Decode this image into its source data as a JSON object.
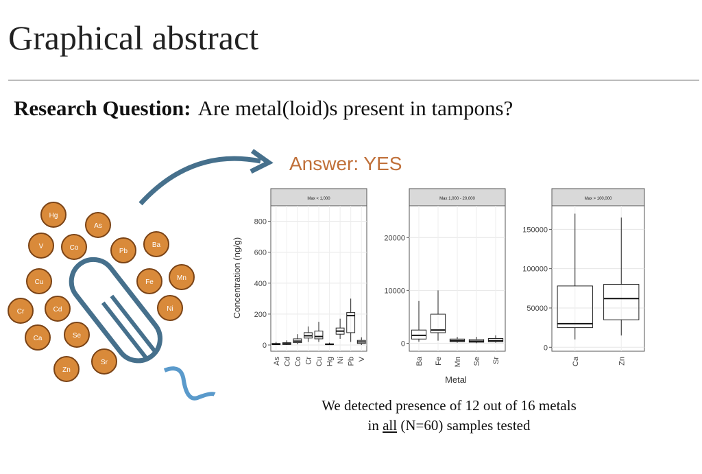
{
  "header": {
    "title": "Graphical abstract"
  },
  "abstract": {
    "question_label": "Research Question:",
    "question": "Are metal(loid)s present in tampons?",
    "answer": "Answer: YES",
    "elements": [
      "Hg",
      "As",
      "V",
      "Co",
      "Pb",
      "Ba",
      "Cu",
      "Fe",
      "Mn",
      "Cr",
      "Cd",
      "Ni",
      "Ca",
      "Se",
      "Zn",
      "Sr"
    ],
    "conclusion": [
      "We detected presence of 12 out of 16 metals",
      "in ",
      "all",
      " (N=60) samples tested"
    ]
  },
  "chart_data": [
    {
      "type": "box",
      "title": "Max < 1,000",
      "ylabel": "Concentration (ng/g)",
      "categories": [
        "As",
        "Cd",
        "Co",
        "Cr",
        "Cu",
        "Hg",
        "Ni",
        "Pb",
        "V"
      ],
      "values": [
        [
          0,
          2,
          5,
          10,
          20
        ],
        [
          0,
          3,
          8,
          15,
          30
        ],
        [
          5,
          15,
          25,
          40,
          70
        ],
        [
          20,
          45,
          60,
          80,
          120
        ],
        [
          20,
          40,
          55,
          90,
          150
        ],
        [
          0,
          2,
          4,
          8,
          15
        ],
        [
          40,
          70,
          90,
          110,
          170
        ],
        [
          20,
          80,
          190,
          210,
          300
        ],
        [
          0,
          10,
          20,
          30,
          50
        ]
      ],
      "ylim": [
        -40,
        900
      ],
      "yticks": [
        0,
        200,
        400,
        600,
        800
      ],
      "grid": true
    },
    {
      "type": "box",
      "title": "Max 1,000 - 20,000",
      "xlabel": "Metal",
      "categories": [
        "Ba",
        "Fe",
        "Mn",
        "Se",
        "Sr"
      ],
      "values": [
        [
          300,
          800,
          1500,
          2500,
          8000
        ],
        [
          500,
          2000,
          2500,
          5500,
          10000
        ],
        [
          100,
          300,
          500,
          800,
          1200
        ],
        [
          0,
          200,
          400,
          700,
          1200
        ],
        [
          100,
          300,
          500,
          900,
          1500
        ]
      ],
      "ylim": [
        -1500,
        26000
      ],
      "yticks": [
        0,
        10000,
        20000
      ],
      "grid": true
    },
    {
      "type": "box",
      "title": "Max > 100,000",
      "categories": [
        "Ca",
        "Zn"
      ],
      "values": [
        [
          10000,
          25000,
          30000,
          78000,
          170000
        ],
        [
          15000,
          35000,
          62000,
          80000,
          165000
        ]
      ],
      "ylim": [
        -5000,
        180000
      ],
      "yticks": [
        0,
        50000,
        100000,
        150000
      ],
      "grid": true
    }
  ]
}
